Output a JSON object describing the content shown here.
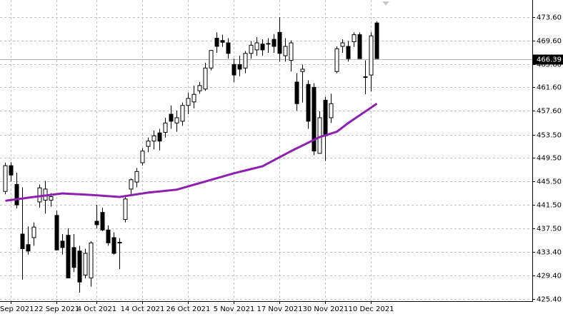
{
  "chart_data": {
    "type": "candlestick",
    "categories": [
      null,
      "Sep 2021",
      null,
      null,
      null,
      null,
      null,
      null,
      null,
      "22 Sep 2021",
      null,
      null,
      null,
      null,
      null,
      null,
      "4 Oct 2021",
      null,
      null,
      null,
      null,
      null,
      null,
      null,
      "14 Oct 2021",
      null,
      null,
      null,
      null,
      null,
      null,
      null,
      "26 Oct 2021",
      null,
      null,
      null,
      null,
      null,
      null,
      null,
      "5 Nov 2021",
      null,
      null,
      null,
      null,
      null,
      null,
      null,
      "17 Nov 2021",
      null,
      null,
      null,
      null,
      null,
      null,
      null,
      "30 Nov 2021",
      null,
      null,
      null,
      null,
      null,
      null,
      null,
      "10 Dec 2021",
      null
    ],
    "ohlc": [
      [
        443.8,
        448.7,
        443.3,
        448.2
      ],
      [
        448.2,
        448.8,
        445.5,
        446.6
      ],
      [
        445.0,
        447.0,
        440.9,
        441.5
      ],
      [
        436.5,
        444.5,
        428.7,
        434.0
      ],
      [
        434.7,
        437.8,
        433.0,
        433.6
      ],
      [
        435.9,
        438.5,
        434.5,
        437.7
      ],
      [
        442.0,
        445.0,
        441.0,
        444.4
      ],
      [
        442.3,
        445.6,
        440.0,
        444.2
      ],
      [
        442.3,
        443.5,
        441.2,
        442.9
      ],
      [
        439.7,
        440.5,
        433.7,
        433.8
      ],
      [
        435.3,
        436.5,
        433.0,
        434.2
      ],
      [
        436.3,
        437.5,
        429.0,
        429.0
      ],
      [
        434.2,
        436.5,
        430.0,
        430.8
      ],
      [
        433.6,
        434.5,
        426.5,
        428.3
      ],
      [
        429.5,
        434.0,
        428.9,
        433.2
      ],
      [
        429.0,
        435.3,
        427.5,
        435.0
      ],
      [
        438.7,
        441.5,
        437.5,
        438.1
      ],
      [
        440.2,
        441.0,
        437.0,
        437.2
      ],
      [
        437.2,
        438.0,
        434.5,
        435.0
      ],
      [
        435.9,
        436.8,
        433.0,
        433.2
      ],
      [
        435.0,
        435.8,
        430.5,
        435.1
      ],
      [
        439.0,
        443.0,
        438.5,
        442.5
      ],
      [
        444.2,
        446.0,
        443.0,
        445.8
      ],
      [
        445.4,
        447.8,
        444.5,
        447.2
      ],
      [
        448.7,
        451.2,
        448.2,
        450.7
      ],
      [
        451.5,
        453.0,
        450.5,
        452.4
      ],
      [
        452.4,
        454.2,
        451.0,
        453.3
      ],
      [
        453.8,
        454.5,
        450.8,
        452.4
      ],
      [
        453.9,
        456.4,
        453.0,
        455.5
      ],
      [
        457.0,
        458.5,
        454.5,
        455.8
      ],
      [
        455.5,
        457.6,
        454.0,
        456.4
      ],
      [
        455.8,
        459.0,
        455.0,
        458.5
      ],
      [
        458.5,
        460.7,
        457.0,
        459.7
      ],
      [
        459.1,
        461.9,
        458.0,
        460.4
      ],
      [
        461.0,
        462.5,
        460.5,
        461.9
      ],
      [
        461.3,
        465.8,
        461.0,
        464.9
      ],
      [
        464.9,
        468.0,
        464.5,
        467.9
      ],
      [
        470.0,
        471.0,
        467.5,
        468.6
      ],
      [
        469.6,
        470.6,
        468.5,
        469.3
      ],
      [
        469.2,
        470.0,
        466.5,
        467.4
      ],
      [
        465.5,
        466.5,
        462.5,
        463.7
      ],
      [
        465.5,
        467.0,
        463.5,
        464.7
      ],
      [
        464.9,
        467.8,
        464.0,
        467.4
      ],
      [
        467.4,
        469.5,
        466.5,
        468.8
      ],
      [
        468.0,
        470.2,
        467.0,
        469.2
      ],
      [
        469.0,
        469.8,
        467.0,
        468.0
      ],
      [
        469.0,
        470.0,
        467.5,
        469.1
      ],
      [
        469.8,
        470.7,
        467.5,
        468.6
      ],
      [
        471.0,
        473.6,
        466.0,
        467.4
      ],
      [
        467.0,
        470.0,
        466.0,
        468.6
      ],
      [
        466.2,
        469.6,
        464.3,
        469.2
      ],
      [
        462.5,
        464.0,
        457.6,
        458.8
      ],
      [
        464.3,
        465.5,
        459.0,
        464.7
      ],
      [
        462.1,
        462.8,
        454.5,
        455.8
      ],
      [
        461.6,
        462.3,
        450.0,
        450.7
      ],
      [
        450.3,
        457.5,
        450.3,
        456.4
      ],
      [
        459.4,
        460.0,
        449.0,
        453.3
      ],
      [
        456.4,
        460.5,
        455.5,
        458.8
      ],
      [
        464.3,
        468.6,
        464.0,
        468.2
      ],
      [
        468.6,
        469.8,
        467.5,
        469.2
      ],
      [
        468.6,
        469.5,
        466.0,
        466.5
      ],
      [
        469.4,
        471.0,
        468.5,
        470.6
      ],
      [
        470.6,
        471.0,
        466.5,
        466.5
      ],
      [
        463.3,
        466.2,
        460.4,
        463.4
      ],
      [
        463.7,
        471.0,
        460.9,
        470.4
      ],
      [
        472.6,
        472.9,
        466.5,
        466.5
      ]
    ],
    "up_color": "#ffffff",
    "down_color": "#000000",
    "ma": {
      "color": "#8e1fb0",
      "values": [
        442.2,
        442.33,
        442.46,
        442.59,
        442.72,
        442.85,
        442.97,
        443.09,
        443.21,
        443.33,
        443.46,
        443.4,
        443.35,
        443.3,
        443.25,
        443.2,
        443.13,
        443.06,
        442.99,
        442.92,
        442.85,
        443.0,
        443.15,
        443.3,
        443.45,
        443.6,
        443.7,
        443.8,
        443.9,
        444.0,
        444.1,
        444.38,
        444.66,
        444.94,
        445.22,
        445.5,
        445.78,
        446.06,
        446.34,
        446.62,
        446.9,
        447.14,
        447.38,
        447.62,
        447.86,
        448.1,
        448.62,
        449.14,
        449.66,
        450.18,
        450.7,
        451.18,
        451.66,
        452.14,
        452.62,
        453.1,
        453.4,
        453.7,
        454.0,
        454.75,
        455.5,
        456.16,
        456.82,
        457.48,
        458.14,
        458.8
      ]
    },
    "ylim": [
      425.03,
      476.53
    ],
    "yticks": [
      {
        "value": 473.6,
        "label": "473.60"
      },
      {
        "value": 469.6,
        "label": "469.60"
      },
      {
        "value": 465.6,
        "label": "465.60"
      },
      {
        "value": 461.6,
        "label": "461.60"
      },
      {
        "value": 457.6,
        "label": "457.60"
      },
      {
        "value": 453.5,
        "label": "453.50"
      },
      {
        "value": 449.5,
        "label": "449.50"
      },
      {
        "value": 445.5,
        "label": "445.50"
      },
      {
        "value": 441.5,
        "label": "441.50"
      },
      {
        "value": 437.5,
        "label": "437.50"
      },
      {
        "value": 433.4,
        "label": "433.40"
      },
      {
        "value": 429.4,
        "label": "429.40"
      },
      {
        "value": 425.4,
        "label": "425.40"
      }
    ],
    "current_price": {
      "value": 466.39,
      "label": "466.39"
    },
    "grid": true
  }
}
